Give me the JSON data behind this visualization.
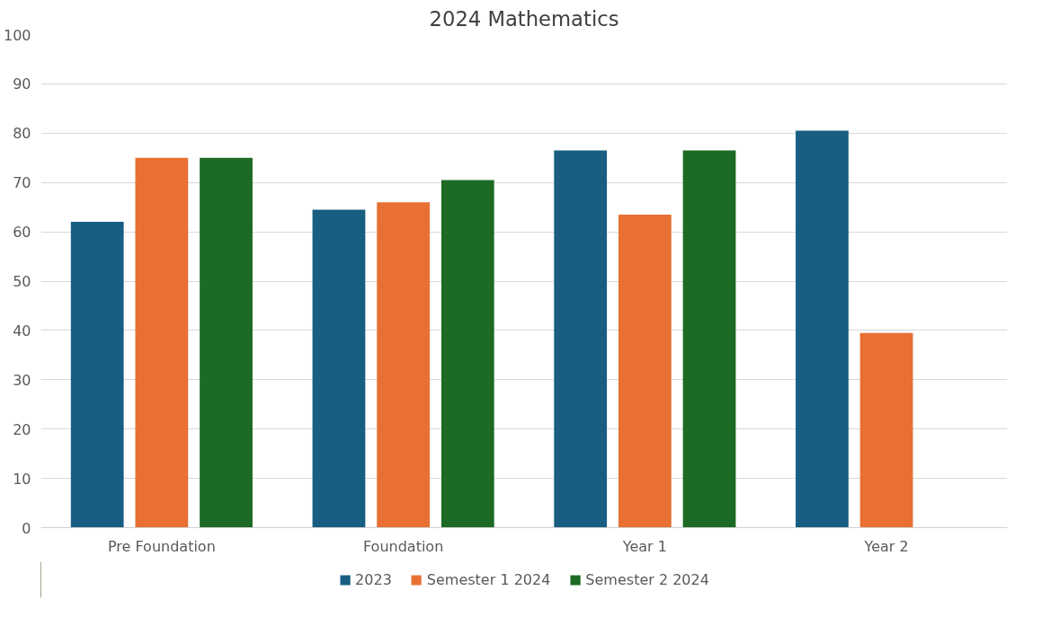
{
  "chart_data": {
    "type": "bar",
    "title": "2024 Mathematics",
    "categories": [
      "Pre Foundation",
      "Foundation",
      "Year 1",
      "Year 2"
    ],
    "series": [
      {
        "name": "2023",
        "color": "#175e82",
        "values": [
          62,
          64.5,
          76.5,
          80.5
        ]
      },
      {
        "name": "Semester 1 2024",
        "color": "#e87032",
        "values": [
          75,
          66,
          63.5,
          39.5
        ]
      },
      {
        "name": "Semester 2 2024",
        "color": "#1c6a23",
        "values": [
          75,
          70.5,
          76.5,
          null
        ]
      }
    ],
    "ylim": [
      0,
      100
    ],
    "yticks": [
      0,
      10,
      20,
      30,
      40,
      50,
      60,
      70,
      80,
      90,
      100
    ],
    "grid": "y",
    "legend": "bottom"
  }
}
